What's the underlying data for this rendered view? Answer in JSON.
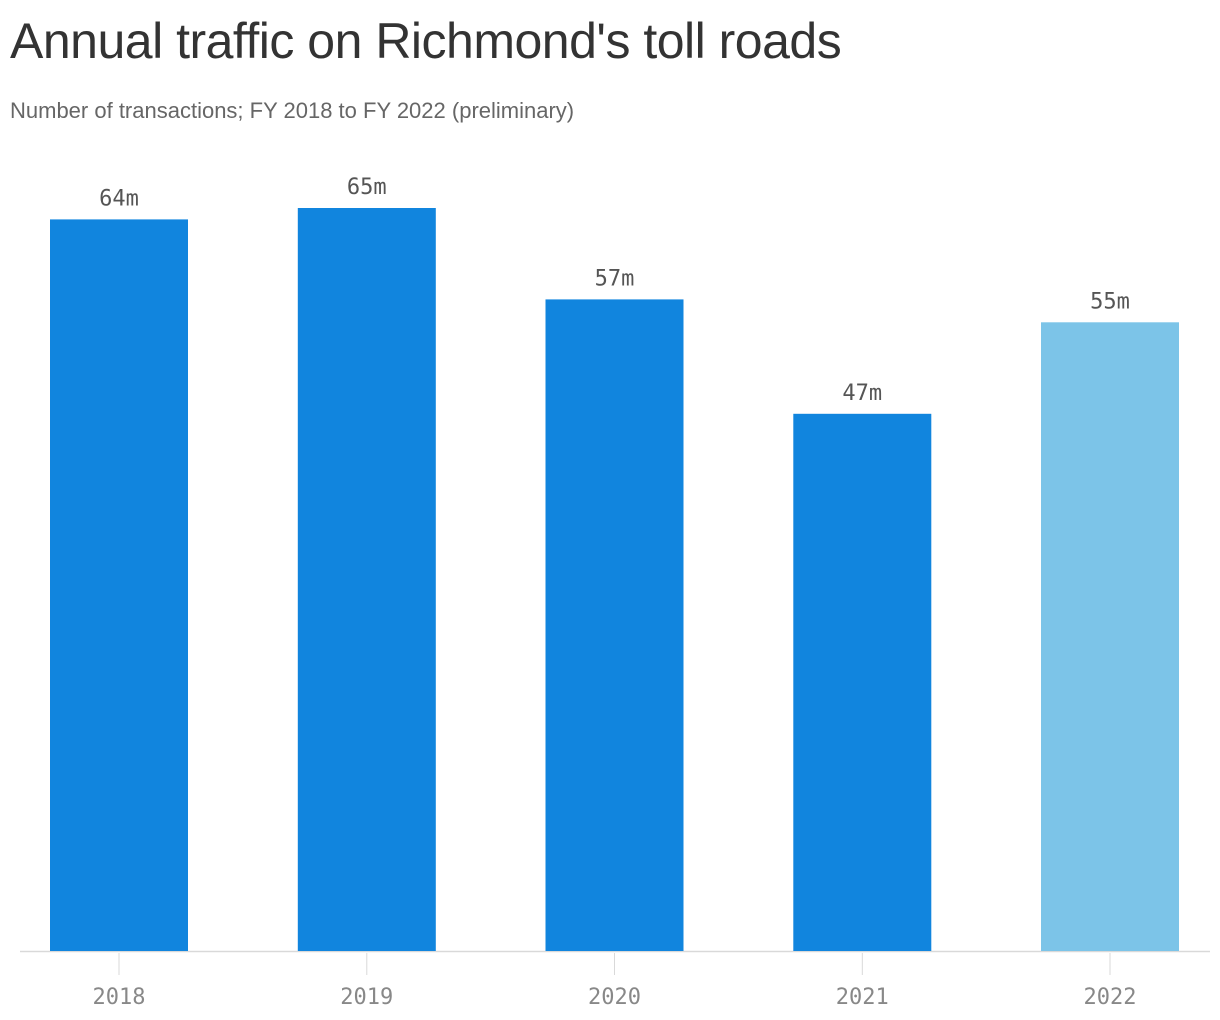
{
  "title": "Annual traffic on Richmond's toll roads",
  "subtitle": "Number of transactions; FY 2018 to FY 2022 (preliminary)",
  "colors": {
    "bar": "#1185de",
    "bar_highlight": "#7cc4e8",
    "axis": "#d9d9d9"
  },
  "chart_data": {
    "type": "bar",
    "categories": [
      "2018",
      "2019",
      "2020",
      "2021",
      "2022"
    ],
    "values": [
      64,
      65,
      57,
      47,
      55
    ],
    "data_labels": [
      "64m",
      "65m",
      "57m",
      "47m",
      "55m"
    ],
    "highlighted_categories": [
      "2022"
    ],
    "title": "Annual traffic on Richmond's toll roads",
    "subtitle": "Number of transactions; FY 2018 to FY 2022 (preliminary)",
    "xlabel": "",
    "ylabel": "",
    "ylim": [
      0,
      65
    ],
    "grid": false,
    "legend": "none"
  }
}
